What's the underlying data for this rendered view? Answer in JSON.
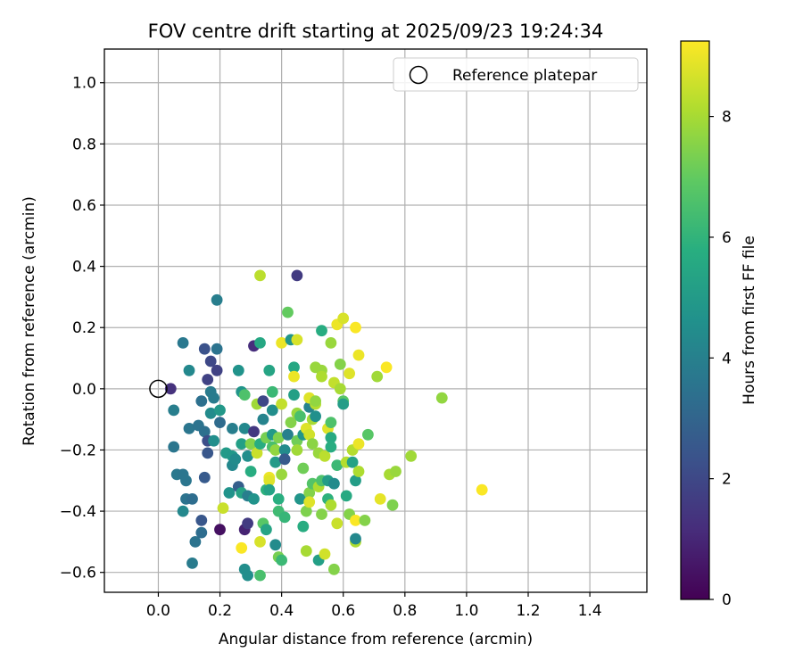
{
  "chart_data": {
    "type": "scatter",
    "title": "FOV centre drift starting at 2025/09/23 19:24:34",
    "xlabel": "Angular distance from reference (arcmin)",
    "ylabel": "Rotation from reference (arcmin)",
    "xlim": [
      -0.175,
      1.585
    ],
    "ylim": [
      -0.665,
      1.11
    ],
    "xticks": [
      0.0,
      0.2,
      0.4,
      0.6,
      0.8,
      1.0,
      1.2,
      1.4
    ],
    "xtick_labels": [
      "0.0",
      "0.2",
      "0.4",
      "0.6",
      "0.8",
      "1.0",
      "1.2",
      "1.4"
    ],
    "yticks": [
      -0.6,
      -0.4,
      -0.2,
      0.0,
      0.2,
      0.4,
      0.6,
      0.8,
      1.0
    ],
    "ytick_labels": [
      "−0.6",
      "−0.4",
      "−0.2",
      "0.0",
      "0.2",
      "0.4",
      "0.6",
      "0.8",
      "1.0"
    ],
    "grid": true,
    "legend": {
      "position": "top-right",
      "entries": [
        "Reference platepar"
      ]
    },
    "reference_point": {
      "x": 0.0,
      "y": 0.0,
      "label": "Reference platepar"
    },
    "colorbar": {
      "label": "Hours from first FF file",
      "range": [
        0,
        9.25
      ],
      "ticks": [
        0,
        2,
        4,
        6,
        8
      ],
      "tick_labels": [
        "0",
        "2",
        "4",
        "6",
        "8"
      ],
      "colormap": "viridis"
    },
    "points": [
      {
        "x": 0.04,
        "y": 0.0,
        "h": 1.3
      },
      {
        "x": 0.05,
        "y": -0.07,
        "h": 3.9
      },
      {
        "x": 0.05,
        "y": -0.19,
        "h": 3.6
      },
      {
        "x": 0.06,
        "y": -0.28,
        "h": 3.7
      },
      {
        "x": 0.08,
        "y": 0.15,
        "h": 3.7
      },
      {
        "x": 0.08,
        "y": -0.28,
        "h": 3.6
      },
      {
        "x": 0.08,
        "y": -0.4,
        "h": 4.3
      },
      {
        "x": 0.09,
        "y": -0.3,
        "h": 3.6
      },
      {
        "x": 0.09,
        "y": -0.36,
        "h": 3.5
      },
      {
        "x": 0.1,
        "y": 0.06,
        "h": 4.3
      },
      {
        "x": 0.1,
        "y": -0.13,
        "h": 3.6
      },
      {
        "x": 0.11,
        "y": -0.57,
        "h": 3.8
      },
      {
        "x": 0.11,
        "y": -0.36,
        "h": 3.3
      },
      {
        "x": 0.12,
        "y": -0.5,
        "h": 3.5
      },
      {
        "x": 0.13,
        "y": -0.12,
        "h": 3.5
      },
      {
        "x": 0.14,
        "y": -0.04,
        "h": 3.4
      },
      {
        "x": 0.14,
        "y": -0.43,
        "h": 2.5
      },
      {
        "x": 0.14,
        "y": -0.47,
        "h": 3.3
      },
      {
        "x": 0.15,
        "y": 0.13,
        "h": 2.3
      },
      {
        "x": 0.15,
        "y": -0.29,
        "h": 2.6
      },
      {
        "x": 0.15,
        "y": -0.14,
        "h": 3.4
      },
      {
        "x": 0.16,
        "y": -0.21,
        "h": 2.5
      },
      {
        "x": 0.16,
        "y": -0.17,
        "h": 2.2
      },
      {
        "x": 0.16,
        "y": 0.03,
        "h": 1.8
      },
      {
        "x": 0.17,
        "y": 0.09,
        "h": 2.0
      },
      {
        "x": 0.17,
        "y": -0.01,
        "h": 3.8
      },
      {
        "x": 0.17,
        "y": -0.08,
        "h": 4.4
      },
      {
        "x": 0.18,
        "y": -0.03,
        "h": 3.8
      },
      {
        "x": 0.18,
        "y": -0.17,
        "h": 4.5
      },
      {
        "x": 0.19,
        "y": 0.13,
        "h": 3.5
      },
      {
        "x": 0.19,
        "y": 0.06,
        "h": 1.8
      },
      {
        "x": 0.19,
        "y": 0.29,
        "h": 3.9
      },
      {
        "x": 0.2,
        "y": -0.07,
        "h": 4.9
      },
      {
        "x": 0.2,
        "y": -0.11,
        "h": 3.2
      },
      {
        "x": 0.2,
        "y": -0.46,
        "h": 0.4
      },
      {
        "x": 0.21,
        "y": -0.39,
        "h": 8.5
      },
      {
        "x": 0.22,
        "y": -0.21,
        "h": 5.0
      },
      {
        "x": 0.23,
        "y": -0.34,
        "h": 4.7
      },
      {
        "x": 0.24,
        "y": -0.13,
        "h": 3.9
      },
      {
        "x": 0.24,
        "y": -0.22,
        "h": 4.9
      },
      {
        "x": 0.24,
        "y": -0.25,
        "h": 4.3
      },
      {
        "x": 0.25,
        "y": -0.23,
        "h": 4.4
      },
      {
        "x": 0.26,
        "y": 0.06,
        "h": 4.7
      },
      {
        "x": 0.26,
        "y": -0.32,
        "h": 2.8
      },
      {
        "x": 0.27,
        "y": -0.34,
        "h": 5.3
      },
      {
        "x": 0.27,
        "y": -0.52,
        "h": 9.2
      },
      {
        "x": 0.27,
        "y": -0.01,
        "h": 4.8
      },
      {
        "x": 0.27,
        "y": -0.18,
        "h": 5.2
      },
      {
        "x": 0.28,
        "y": -0.02,
        "h": 6.6
      },
      {
        "x": 0.28,
        "y": -0.13,
        "h": 4.3
      },
      {
        "x": 0.28,
        "y": -0.59,
        "h": 4.5
      },
      {
        "x": 0.28,
        "y": -0.46,
        "h": 0.9
      },
      {
        "x": 0.29,
        "y": -0.35,
        "h": 3.9
      },
      {
        "x": 0.29,
        "y": -0.61,
        "h": 4.5
      },
      {
        "x": 0.29,
        "y": -0.22,
        "h": 4.5
      },
      {
        "x": 0.29,
        "y": -0.44,
        "h": 1.6
      },
      {
        "x": 0.3,
        "y": -0.18,
        "h": 7.5
      },
      {
        "x": 0.3,
        "y": -0.27,
        "h": 5.7
      },
      {
        "x": 0.31,
        "y": -0.36,
        "h": 4.7
      },
      {
        "x": 0.31,
        "y": -0.14,
        "h": 1.5
      },
      {
        "x": 0.31,
        "y": 0.14,
        "h": 1.2
      },
      {
        "x": 0.32,
        "y": -0.21,
        "h": 8.5
      },
      {
        "x": 0.32,
        "y": -0.05,
        "h": 7.9
      },
      {
        "x": 0.33,
        "y": -0.18,
        "h": 5.7
      },
      {
        "x": 0.33,
        "y": 0.37,
        "h": 8.3
      },
      {
        "x": 0.33,
        "y": 0.15,
        "h": 5.5
      },
      {
        "x": 0.33,
        "y": -0.5,
        "h": 8.7
      },
      {
        "x": 0.33,
        "y": -0.61,
        "h": 6.5
      },
      {
        "x": 0.34,
        "y": -0.1,
        "h": 4.1
      },
      {
        "x": 0.34,
        "y": -0.44,
        "h": 6.8
      },
      {
        "x": 0.34,
        "y": -0.04,
        "h": 2.0
      },
      {
        "x": 0.35,
        "y": -0.46,
        "h": 5.4
      },
      {
        "x": 0.35,
        "y": -0.33,
        "h": 5.9
      },
      {
        "x": 0.35,
        "y": -0.16,
        "h": 7.3
      },
      {
        "x": 0.36,
        "y": 0.06,
        "h": 5.4
      },
      {
        "x": 0.36,
        "y": -0.29,
        "h": 9.0
      },
      {
        "x": 0.36,
        "y": -0.3,
        "h": 8.8
      },
      {
        "x": 0.36,
        "y": -0.33,
        "h": 5.3
      },
      {
        "x": 0.37,
        "y": -0.07,
        "h": 4.5
      },
      {
        "x": 0.37,
        "y": -0.01,
        "h": 6.2
      },
      {
        "x": 0.37,
        "y": -0.15,
        "h": 5.0
      },
      {
        "x": 0.37,
        "y": -0.19,
        "h": 6.5
      },
      {
        "x": 0.38,
        "y": -0.24,
        "h": 5.0
      },
      {
        "x": 0.38,
        "y": -0.2,
        "h": 7.7
      },
      {
        "x": 0.38,
        "y": -0.51,
        "h": 4.4
      },
      {
        "x": 0.39,
        "y": -0.55,
        "h": 7.3
      },
      {
        "x": 0.39,
        "y": -0.36,
        "h": 5.8
      },
      {
        "x": 0.39,
        "y": -0.4,
        "h": 6.3
      },
      {
        "x": 0.39,
        "y": -0.16,
        "h": 7.4
      },
      {
        "x": 0.4,
        "y": -0.28,
        "h": 7.8
      },
      {
        "x": 0.4,
        "y": -0.05,
        "h": 8.4
      },
      {
        "x": 0.4,
        "y": -0.56,
        "h": 6.2
      },
      {
        "x": 0.4,
        "y": 0.15,
        "h": 9.0
      },
      {
        "x": 0.41,
        "y": -0.42,
        "h": 6.1
      },
      {
        "x": 0.41,
        "y": -0.2,
        "h": 4.4
      },
      {
        "x": 0.41,
        "y": -0.23,
        "h": 2.6
      },
      {
        "x": 0.42,
        "y": 0.25,
        "h": 7.0
      },
      {
        "x": 0.42,
        "y": -0.15,
        "h": 4.0
      },
      {
        "x": 0.43,
        "y": 0.16,
        "h": 4.8
      },
      {
        "x": 0.43,
        "y": -0.11,
        "h": 7.5
      },
      {
        "x": 0.44,
        "y": 0.07,
        "h": 5.5
      },
      {
        "x": 0.44,
        "y": -0.02,
        "h": 5.2
      },
      {
        "x": 0.44,
        "y": 0.04,
        "h": 9.0
      },
      {
        "x": 0.45,
        "y": 0.37,
        "h": 1.6
      },
      {
        "x": 0.45,
        "y": 0.16,
        "h": 8.7
      },
      {
        "x": 0.45,
        "y": -0.17,
        "h": 7.2
      },
      {
        "x": 0.45,
        "y": -0.2,
        "h": 7.9
      },
      {
        "x": 0.45,
        "y": -0.08,
        "h": 7.8
      },
      {
        "x": 0.46,
        "y": -0.36,
        "h": 4.8
      },
      {
        "x": 0.46,
        "y": -0.09,
        "h": 6.5
      },
      {
        "x": 0.47,
        "y": -0.45,
        "h": 5.7
      },
      {
        "x": 0.47,
        "y": -0.26,
        "h": 7.2
      },
      {
        "x": 0.47,
        "y": -0.15,
        "h": 4.8
      },
      {
        "x": 0.48,
        "y": -0.13,
        "h": 8.8
      },
      {
        "x": 0.48,
        "y": -0.4,
        "h": 7.4
      },
      {
        "x": 0.48,
        "y": -0.53,
        "h": 8.0
      },
      {
        "x": 0.49,
        "y": -0.34,
        "h": 7.5
      },
      {
        "x": 0.49,
        "y": -0.15,
        "h": 8.6
      },
      {
        "x": 0.49,
        "y": -0.06,
        "h": 4.1
      },
      {
        "x": 0.49,
        "y": -0.37,
        "h": 8.8
      },
      {
        "x": 0.49,
        "y": -0.03,
        "h": 8.8
      },
      {
        "x": 0.5,
        "y": -0.31,
        "h": 6.7
      },
      {
        "x": 0.5,
        "y": -0.18,
        "h": 7.6
      },
      {
        "x": 0.5,
        "y": -0.1,
        "h": 8.0
      },
      {
        "x": 0.51,
        "y": -0.05,
        "h": 8.2
      },
      {
        "x": 0.51,
        "y": 0.07,
        "h": 7.8
      },
      {
        "x": 0.51,
        "y": -0.04,
        "h": 7.7
      },
      {
        "x": 0.51,
        "y": -0.09,
        "h": 4.6
      },
      {
        "x": 0.52,
        "y": -0.32,
        "h": 8.1
      },
      {
        "x": 0.52,
        "y": -0.56,
        "h": 5.2
      },
      {
        "x": 0.52,
        "y": -0.21,
        "h": 7.8
      },
      {
        "x": 0.53,
        "y": 0.06,
        "h": 7.8
      },
      {
        "x": 0.53,
        "y": 0.04,
        "h": 8.1
      },
      {
        "x": 0.53,
        "y": -0.41,
        "h": 7.5
      },
      {
        "x": 0.53,
        "y": -0.3,
        "h": 6.6
      },
      {
        "x": 0.53,
        "y": 0.19,
        "h": 5.7
      },
      {
        "x": 0.54,
        "y": -0.54,
        "h": 8.6
      },
      {
        "x": 0.54,
        "y": -0.22,
        "h": 8.3
      },
      {
        "x": 0.55,
        "y": -0.36,
        "h": 5.9
      },
      {
        "x": 0.55,
        "y": -0.3,
        "h": 5.1
      },
      {
        "x": 0.55,
        "y": -0.13,
        "h": 8.8
      },
      {
        "x": 0.56,
        "y": -0.11,
        "h": 6.6
      },
      {
        "x": 0.56,
        "y": -0.16,
        "h": 5.6
      },
      {
        "x": 0.56,
        "y": -0.19,
        "h": 5.7
      },
      {
        "x": 0.56,
        "y": 0.15,
        "h": 7.8
      },
      {
        "x": 0.56,
        "y": -0.38,
        "h": 8.1
      },
      {
        "x": 0.57,
        "y": -0.59,
        "h": 7.5
      },
      {
        "x": 0.57,
        "y": -0.31,
        "h": 4.4
      },
      {
        "x": 0.57,
        "y": 0.02,
        "h": 8.4
      },
      {
        "x": 0.58,
        "y": -0.44,
        "h": 8.5
      },
      {
        "x": 0.58,
        "y": -0.25,
        "h": 6.2
      },
      {
        "x": 0.58,
        "y": 0.21,
        "h": 9.0
      },
      {
        "x": 0.59,
        "y": 0.08,
        "h": 7.5
      },
      {
        "x": 0.59,
        "y": 0.0,
        "h": 8.0
      },
      {
        "x": 0.6,
        "y": -0.04,
        "h": 6.8
      },
      {
        "x": 0.6,
        "y": -0.05,
        "h": 5.1
      },
      {
        "x": 0.6,
        "y": 0.23,
        "h": 8.7
      },
      {
        "x": 0.61,
        "y": -0.24,
        "h": 8.2
      },
      {
        "x": 0.61,
        "y": -0.35,
        "h": 5.6
      },
      {
        "x": 0.62,
        "y": -0.41,
        "h": 7.5
      },
      {
        "x": 0.62,
        "y": 0.05,
        "h": 8.8
      },
      {
        "x": 0.63,
        "y": -0.24,
        "h": 5.3
      },
      {
        "x": 0.63,
        "y": -0.2,
        "h": 8.2
      },
      {
        "x": 0.64,
        "y": -0.5,
        "h": 8.1
      },
      {
        "x": 0.64,
        "y": -0.49,
        "h": 4.3
      },
      {
        "x": 0.64,
        "y": -0.43,
        "h": 9.2
      },
      {
        "x": 0.64,
        "y": -0.3,
        "h": 5.1
      },
      {
        "x": 0.64,
        "y": 0.2,
        "h": 9.2
      },
      {
        "x": 0.65,
        "y": -0.18,
        "h": 9.0
      },
      {
        "x": 0.65,
        "y": -0.27,
        "h": 8.1
      },
      {
        "x": 0.65,
        "y": 0.11,
        "h": 9.0
      },
      {
        "x": 0.67,
        "y": -0.43,
        "h": 7.5
      },
      {
        "x": 0.68,
        "y": -0.15,
        "h": 6.8
      },
      {
        "x": 0.71,
        "y": 0.04,
        "h": 7.9
      },
      {
        "x": 0.72,
        "y": -0.36,
        "h": 8.9
      },
      {
        "x": 0.74,
        "y": 0.07,
        "h": 9.2
      },
      {
        "x": 0.75,
        "y": -0.28,
        "h": 8.0
      },
      {
        "x": 0.76,
        "y": -0.38,
        "h": 7.4
      },
      {
        "x": 0.77,
        "y": -0.27,
        "h": 7.8
      },
      {
        "x": 0.82,
        "y": -0.22,
        "h": 7.9
      },
      {
        "x": 0.92,
        "y": -0.03,
        "h": 7.7
      },
      {
        "x": 1.05,
        "y": -0.33,
        "h": 9.2
      }
    ]
  }
}
